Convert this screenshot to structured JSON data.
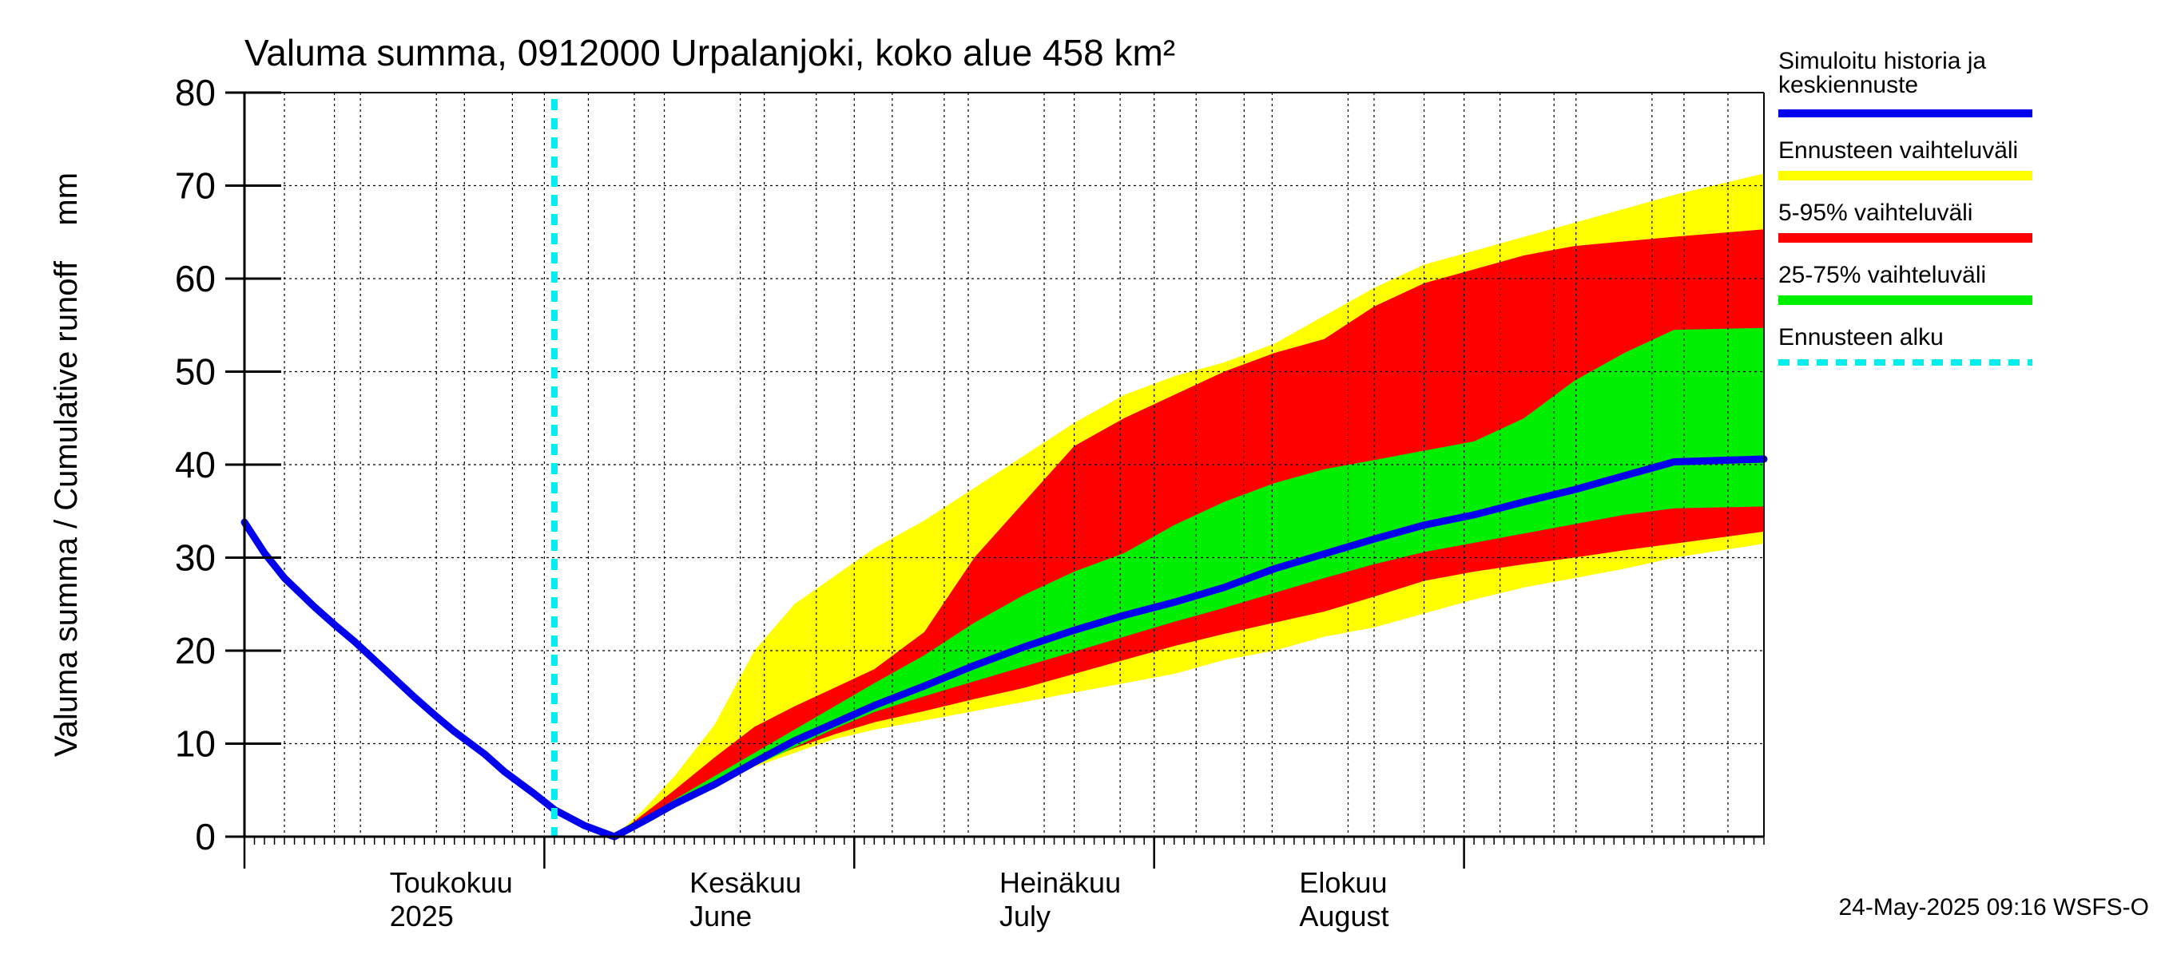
{
  "chart_data": {
    "type": "area",
    "title": "Valuma summa, 0912000 Urpalanjoki, koko alue 458 km²",
    "ylabel": "Valuma summa / Cumulative runoff    mm",
    "x_range": [
      "2025-04-01",
      "2025-08-31"
    ],
    "ylim": [
      0,
      80
    ],
    "y_ticks": [
      0,
      10,
      20,
      30,
      40,
      50,
      60,
      70,
      80
    ],
    "grid": true,
    "month_labels": [
      {
        "date": "2025-04-16",
        "fi": "Toukokuu",
        "en": "2025"
      },
      {
        "date": "2025-05-16",
        "fi": "Kesäkuu",
        "en": "June"
      },
      {
        "date": "2025-06-16",
        "fi": "Heinäkuu",
        "en": "July"
      },
      {
        "date": "2025-07-16",
        "fi": "Elokuu",
        "en": "August"
      }
    ],
    "forecast_start": "2025-05-02",
    "series": [
      {
        "name": "Simuloitu historia ja keskiennuste",
        "kind": "line",
        "color": "#0000ee",
        "points": [
          [
            "2025-04-01",
            33.8
          ],
          [
            "2025-04-03",
            30.5
          ],
          [
            "2025-04-05",
            27.8
          ],
          [
            "2025-04-08",
            24.7
          ],
          [
            "2025-04-10",
            22.8
          ],
          [
            "2025-04-12",
            21.0
          ],
          [
            "2025-04-15",
            18.0
          ],
          [
            "2025-04-18",
            15.0
          ],
          [
            "2025-04-20",
            13.1
          ],
          [
            "2025-04-22",
            11.3
          ],
          [
            "2025-04-25",
            8.9
          ],
          [
            "2025-04-27",
            7.0
          ],
          [
            "2025-04-30",
            4.6
          ],
          [
            "2025-05-02",
            2.9
          ],
          [
            "2025-05-05",
            1.2
          ],
          [
            "2025-05-08",
            0.0
          ],
          [
            "2025-05-11",
            1.7
          ],
          [
            "2025-05-14",
            3.5
          ],
          [
            "2025-05-18",
            5.6
          ],
          [
            "2025-05-22",
            8.0
          ],
          [
            "2025-05-26",
            10.3
          ],
          [
            "2025-05-30",
            12.2
          ],
          [
            "2025-06-03",
            14.1
          ],
          [
            "2025-06-08",
            16.2
          ],
          [
            "2025-06-13",
            18.4
          ],
          [
            "2025-06-18",
            20.4
          ],
          [
            "2025-06-23",
            22.2
          ],
          [
            "2025-06-28",
            23.8
          ],
          [
            "2025-07-03",
            25.2
          ],
          [
            "2025-07-08",
            26.8
          ],
          [
            "2025-07-13",
            28.8
          ],
          [
            "2025-07-18",
            30.4
          ],
          [
            "2025-07-23",
            32.0
          ],
          [
            "2025-07-28",
            33.5
          ],
          [
            "2025-08-02",
            34.6
          ],
          [
            "2025-08-07",
            36.0
          ],
          [
            "2025-08-12",
            37.3
          ],
          [
            "2025-08-17",
            38.8
          ],
          [
            "2025-08-22",
            40.3
          ],
          [
            "2025-08-31",
            40.6
          ]
        ]
      },
      {
        "name": "Ennusteen vaihteluväli",
        "kind": "band",
        "color": "#ffff00",
        "x": [
          "2025-05-08",
          "2025-05-11",
          "2025-05-14",
          "2025-05-18",
          "2025-05-22",
          "2025-05-26",
          "2025-05-30",
          "2025-06-03",
          "2025-06-08",
          "2025-06-13",
          "2025-06-18",
          "2025-06-23",
          "2025-06-28",
          "2025-07-03",
          "2025-07-08",
          "2025-07-13",
          "2025-07-18",
          "2025-07-23",
          "2025-07-28",
          "2025-08-02",
          "2025-08-07",
          "2025-08-12",
          "2025-08-17",
          "2025-08-22",
          "2025-08-31"
        ],
        "upper": [
          0.0,
          3.0,
          6.5,
          12.0,
          20.0,
          25.0,
          28.0,
          31.0,
          34.0,
          37.5,
          41.0,
          44.5,
          47.5,
          49.5,
          51.0,
          53.0,
          56.0,
          59.0,
          61.5,
          63.0,
          64.5,
          66.0,
          67.5,
          69.0,
          71.3
        ],
        "lower": [
          0.0,
          1.5,
          3.5,
          5.5,
          7.5,
          9.0,
          10.5,
          11.5,
          12.5,
          13.5,
          14.5,
          15.5,
          16.5,
          17.5,
          19.0,
          20.0,
          21.5,
          22.5,
          24.0,
          25.5,
          26.8,
          27.8,
          28.8,
          30.0,
          31.5
        ]
      },
      {
        "name": "5-95% vaihteluväli",
        "kind": "band",
        "color": "#ff0000",
        "x": [
          "2025-05-08",
          "2025-05-11",
          "2025-05-14",
          "2025-05-18",
          "2025-05-22",
          "2025-05-26",
          "2025-05-30",
          "2025-06-03",
          "2025-06-08",
          "2025-06-13",
          "2025-06-18",
          "2025-06-23",
          "2025-06-28",
          "2025-07-03",
          "2025-07-08",
          "2025-07-13",
          "2025-07-18",
          "2025-07-23",
          "2025-07-28",
          "2025-08-02",
          "2025-08-07",
          "2025-08-12",
          "2025-08-17",
          "2025-08-22",
          "2025-08-31"
        ],
        "upper": [
          0.0,
          2.5,
          5.0,
          8.5,
          11.8,
          14.0,
          16.0,
          18.0,
          22.0,
          30.0,
          36.0,
          42.0,
          45.0,
          47.5,
          50.0,
          52.0,
          53.5,
          57.0,
          59.5,
          61.0,
          62.5,
          63.5,
          64.0,
          64.5,
          65.3
        ],
        "lower": [
          0.0,
          1.7,
          3.8,
          5.8,
          7.8,
          9.5,
          11.0,
          12.3,
          13.5,
          14.8,
          16.0,
          17.5,
          19.0,
          20.5,
          21.8,
          23.0,
          24.2,
          25.8,
          27.5,
          28.5,
          29.3,
          30.0,
          30.8,
          31.5,
          32.8
        ]
      },
      {
        "name": "25-75% vaihteluväli",
        "kind": "band",
        "color": "#00ee00",
        "x": [
          "2025-05-08",
          "2025-05-11",
          "2025-05-14",
          "2025-05-18",
          "2025-05-22",
          "2025-05-26",
          "2025-05-30",
          "2025-06-03",
          "2025-06-08",
          "2025-06-13",
          "2025-06-18",
          "2025-06-23",
          "2025-06-28",
          "2025-07-03",
          "2025-07-08",
          "2025-07-13",
          "2025-07-18",
          "2025-07-23",
          "2025-07-28",
          "2025-08-02",
          "2025-08-07",
          "2025-08-12",
          "2025-08-17",
          "2025-08-22",
          "2025-08-31"
        ],
        "upper": [
          0.0,
          2.0,
          4.0,
          6.5,
          9.0,
          11.5,
          14.0,
          16.5,
          19.5,
          23.0,
          26.0,
          28.5,
          30.5,
          33.5,
          36.0,
          38.0,
          39.5,
          40.5,
          41.5,
          42.5,
          45.0,
          49.0,
          52.0,
          54.5,
          54.7
        ],
        "lower": [
          0.0,
          1.8,
          3.6,
          5.6,
          7.6,
          9.6,
          11.6,
          13.4,
          15.1,
          16.7,
          18.3,
          19.9,
          21.5,
          23.1,
          24.6,
          26.2,
          27.8,
          29.3,
          30.6,
          31.6,
          32.6,
          33.6,
          34.6,
          35.3,
          35.5
        ]
      },
      {
        "name": "Ennusteen alku",
        "kind": "vline",
        "color": "#00eeee",
        "x": "2025-05-02"
      }
    ]
  },
  "footer": {
    "timestamp": "24-May-2025 09:16 WSFS-O"
  }
}
